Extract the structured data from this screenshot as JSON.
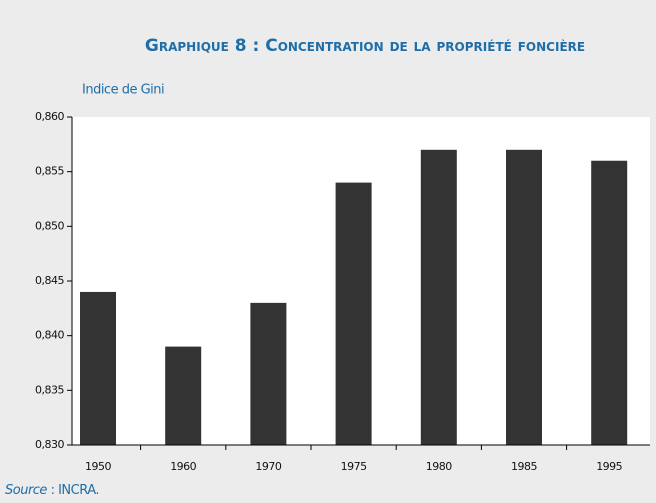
{
  "chart_data": {
    "type": "bar",
    "title": "Graphique 8 : Concentration de la propriété foncière",
    "y_label": "Indice de Gini",
    "categories": [
      "1950",
      "1960",
      "1970",
      "1975",
      "1980",
      "1985",
      "1995"
    ],
    "values": [
      0.844,
      0.839,
      0.843,
      0.854,
      0.857,
      0.857,
      0.856
    ],
    "color": "#333333",
    "ylim": [
      0.83,
      0.86
    ],
    "yticks": [
      {
        "value": 0.83,
        "label": "0,830"
      },
      {
        "value": 0.835,
        "label": "0,835"
      },
      {
        "value": 0.84,
        "label": "0,840"
      },
      {
        "value": 0.845,
        "label": "0,845"
      },
      {
        "value": 0.85,
        "label": "0,850"
      },
      {
        "value": 0.855,
        "label": "0,855"
      },
      {
        "value": 0.86,
        "label": "0,860"
      }
    ],
    "grid": false,
    "source": {
      "label": "Source",
      "text": ": INCRA."
    }
  }
}
